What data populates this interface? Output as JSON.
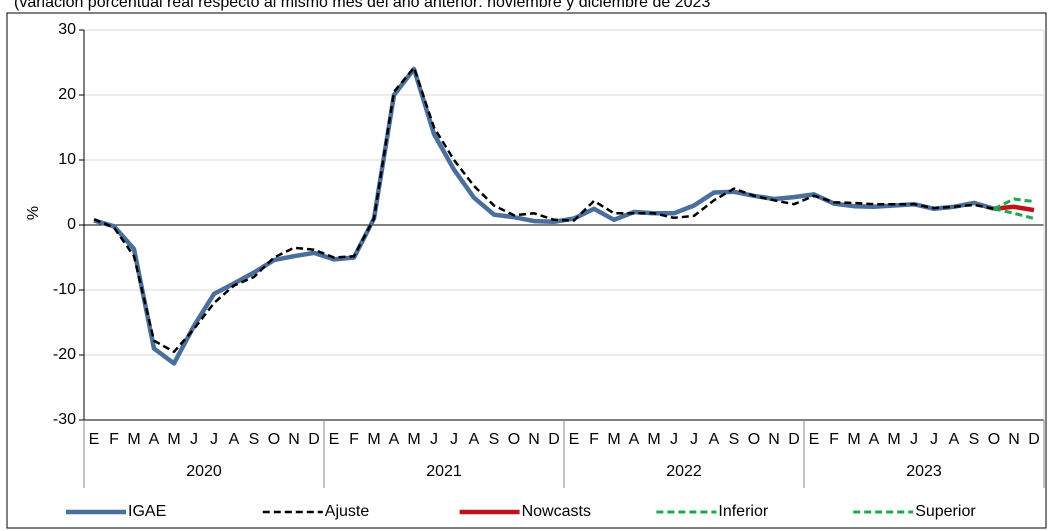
{
  "chart_data": {
    "type": "line",
    "subtitle": "(variación porcentual real respecto al mismo mes del año anterior: noviembre y diciembre de 2023",
    "y_label": "%",
    "categories": [
      "E",
      "F",
      "M",
      "A",
      "M",
      "J",
      "J",
      "A",
      "S",
      "O",
      "N",
      "D",
      "E",
      "F",
      "M",
      "A",
      "M",
      "J",
      "J",
      "A",
      "S",
      "O",
      "N",
      "D",
      "E",
      "F",
      "M",
      "A",
      "M",
      "J",
      "J",
      "A",
      "S",
      "O",
      "N",
      "D",
      "E",
      "F",
      "M",
      "A",
      "M",
      "J",
      "J",
      "A",
      "S",
      "O",
      "N",
      "D"
    ],
    "years": [
      "2020",
      "2021",
      "2022",
      "2023"
    ],
    "ylim": [
      -30,
      30
    ],
    "yticks": [
      -30,
      -20,
      -10,
      0,
      10,
      20,
      30
    ],
    "grid": true,
    "legend": "bottom",
    "series": [
      {
        "name": "IGAE",
        "color": "#4a6f9c",
        "style": "solid",
        "values": [
          0.7,
          -0.2,
          -3.7,
          -19.0,
          -21.3,
          -15.5,
          -10.6,
          -9.0,
          -7.3,
          -5.4,
          -4.8,
          -4.3,
          -5.3,
          -5.0,
          1.0,
          20.0,
          24.0,
          14.0,
          8.5,
          4.2,
          1.6,
          1.2,
          0.6,
          0.5,
          1.0,
          2.5,
          0.8,
          2.0,
          1.8,
          1.8,
          3.0,
          5.0,
          5.1,
          4.5,
          4.0,
          4.3,
          4.7,
          3.3,
          2.9,
          2.8,
          3.0,
          3.2,
          2.5,
          2.8,
          3.4,
          2.5,
          null,
          null
        ]
      },
      {
        "name": "Ajuste",
        "color": "#000000",
        "style": "dashed",
        "values": [
          0.9,
          -0.4,
          -4.8,
          -17.8,
          -19.5,
          -16.0,
          -12.0,
          -9.3,
          -8.0,
          -5.0,
          -3.5,
          -3.8,
          -5.0,
          -4.8,
          1.0,
          20.5,
          24.2,
          15.0,
          10.0,
          6.0,
          3.0,
          1.5,
          1.8,
          0.8,
          0.7,
          3.7,
          1.8,
          1.8,
          1.8,
          1.1,
          1.4,
          3.8,
          5.6,
          4.5,
          3.8,
          3.2,
          4.5,
          3.5,
          3.4,
          3.2,
          3.2,
          3.2,
          2.6,
          2.8,
          3.1,
          2.5,
          null,
          null
        ]
      },
      {
        "name": "Nowcasts",
        "color": "#c0111a",
        "style": "solid",
        "values": [
          null,
          null,
          null,
          null,
          null,
          null,
          null,
          null,
          null,
          null,
          null,
          null,
          null,
          null,
          null,
          null,
          null,
          null,
          null,
          null,
          null,
          null,
          null,
          null,
          null,
          null,
          null,
          null,
          null,
          null,
          null,
          null,
          null,
          null,
          null,
          null,
          null,
          null,
          null,
          null,
          null,
          null,
          null,
          null,
          null,
          2.5,
          2.8,
          2.3
        ]
      },
      {
        "name": "Inferior",
        "color": "#1aa84a",
        "style": "dashed",
        "values": [
          null,
          null,
          null,
          null,
          null,
          null,
          null,
          null,
          null,
          null,
          null,
          null,
          null,
          null,
          null,
          null,
          null,
          null,
          null,
          null,
          null,
          null,
          null,
          null,
          null,
          null,
          null,
          null,
          null,
          null,
          null,
          null,
          null,
          null,
          null,
          null,
          null,
          null,
          null,
          null,
          null,
          null,
          null,
          null,
          null,
          2.5,
          1.8,
          1.0
        ]
      },
      {
        "name": "Superior",
        "color": "#1aa84a",
        "style": "dashed",
        "values": [
          null,
          null,
          null,
          null,
          null,
          null,
          null,
          null,
          null,
          null,
          null,
          null,
          null,
          null,
          null,
          null,
          null,
          null,
          null,
          null,
          null,
          null,
          null,
          null,
          null,
          null,
          null,
          null,
          null,
          null,
          null,
          null,
          null,
          null,
          null,
          null,
          null,
          null,
          null,
          null,
          null,
          null,
          null,
          null,
          null,
          2.5,
          4.0,
          3.6
        ]
      }
    ]
  }
}
